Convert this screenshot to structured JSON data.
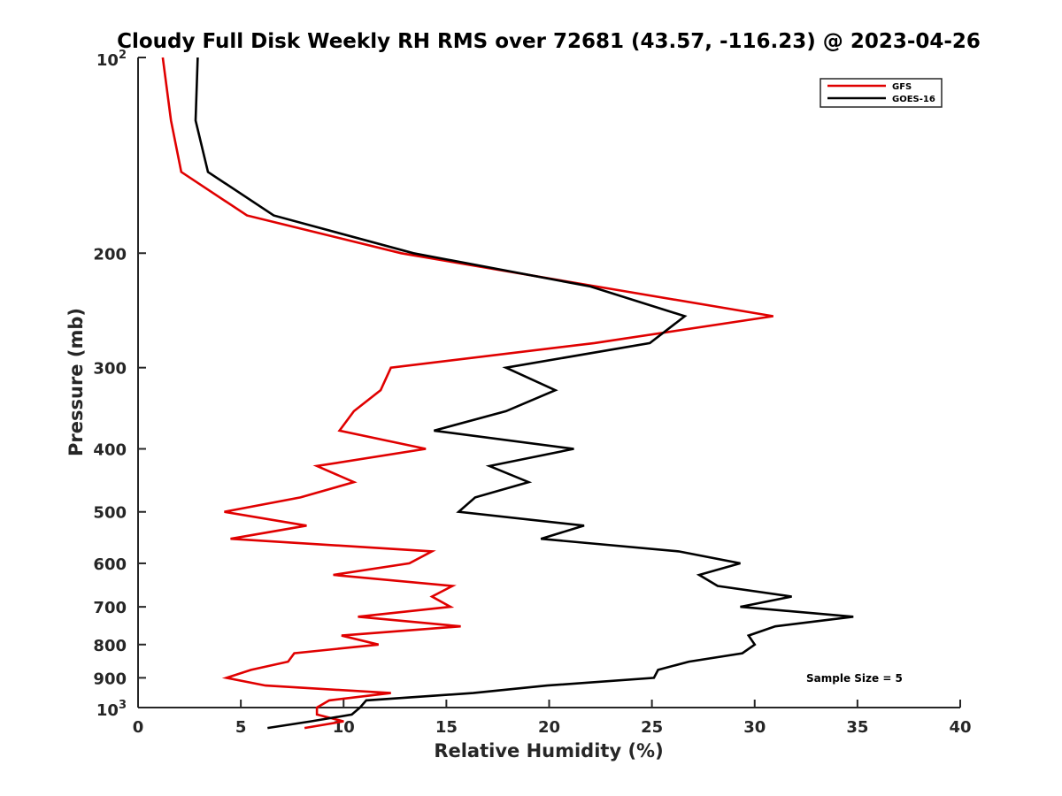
{
  "chart_data": {
    "type": "line",
    "title": "Cloudy Full Disk Weekly RH RMS over 72681 (43.57, -116.23) @ 2023-04-26",
    "xlabel": "Relative Humidity (%)",
    "ylabel": "Pressure (mb)",
    "xlim": [
      0,
      40
    ],
    "ylim": [
      100,
      1000
    ],
    "yscale": "log",
    "y_reversed": true,
    "x_ticks": [
      "0",
      "5",
      "10",
      "15",
      "20",
      "25",
      "30",
      "35",
      "40"
    ],
    "y_ticks": [
      {
        "value": 100,
        "base": "10",
        "exp": "2"
      },
      {
        "value": 200,
        "label": "200"
      },
      {
        "value": 300,
        "label": "300"
      },
      {
        "value": 400,
        "label": "400"
      },
      {
        "value": 500,
        "label": "500"
      },
      {
        "value": 600,
        "label": "600"
      },
      {
        "value": 700,
        "label": "700"
      },
      {
        "value": 800,
        "label": "800"
      },
      {
        "value": 900,
        "label": "900"
      },
      {
        "value": 1000,
        "base": "10",
        "exp": "3"
      }
    ],
    "grid": false,
    "legend_position": "top-right",
    "annotation": "Sample Size = 5",
    "series": [
      {
        "name": "GFS",
        "color": "#e00000",
        "points": [
          [
            1.2,
            100
          ],
          [
            1.6,
            125
          ],
          [
            2.1,
            150
          ],
          [
            5.3,
            175
          ],
          [
            12.8,
            200
          ],
          [
            22.3,
            225
          ],
          [
            30.9,
            250
          ],
          [
            22.2,
            275
          ],
          [
            12.3,
            300
          ],
          [
            11.8,
            325
          ],
          [
            10.5,
            350
          ],
          [
            9.8,
            375
          ],
          [
            14.0,
            400
          ],
          [
            8.7,
            425
          ],
          [
            10.5,
            450
          ],
          [
            7.9,
            475
          ],
          [
            4.2,
            500
          ],
          [
            8.2,
            525
          ],
          [
            4.5,
            550
          ],
          [
            14.3,
            575
          ],
          [
            13.2,
            600
          ],
          [
            9.5,
            625
          ],
          [
            15.3,
            650
          ],
          [
            14.3,
            675
          ],
          [
            15.2,
            700
          ],
          [
            10.7,
            725
          ],
          [
            15.7,
            750
          ],
          [
            9.9,
            775
          ],
          [
            11.7,
            800
          ],
          [
            7.6,
            825
          ],
          [
            7.3,
            850
          ],
          [
            5.5,
            875
          ],
          [
            4.3,
            900
          ],
          [
            6.2,
            925
          ],
          [
            12.3,
            950
          ],
          [
            9.3,
            975
          ],
          [
            8.7,
            1000
          ],
          [
            8.7,
            1025
          ],
          [
            10.0,
            1050
          ],
          [
            8.1,
            1075
          ]
        ]
      },
      {
        "name": "GOES-16",
        "color": "#000000",
        "points": [
          [
            2.9,
            100
          ],
          [
            2.8,
            125
          ],
          [
            3.4,
            150
          ],
          [
            6.6,
            175
          ],
          [
            13.4,
            200
          ],
          [
            22.0,
            225
          ],
          [
            26.6,
            250
          ],
          [
            24.9,
            275
          ],
          [
            17.9,
            300
          ],
          [
            20.3,
            325
          ],
          [
            17.9,
            350
          ],
          [
            14.4,
            375
          ],
          [
            21.2,
            400
          ],
          [
            17.1,
            425
          ],
          [
            19.0,
            450
          ],
          [
            16.4,
            475
          ],
          [
            15.6,
            500
          ],
          [
            21.7,
            525
          ],
          [
            19.6,
            550
          ],
          [
            26.3,
            575
          ],
          [
            29.3,
            600
          ],
          [
            27.3,
            625
          ],
          [
            28.2,
            650
          ],
          [
            31.8,
            675
          ],
          [
            29.3,
            700
          ],
          [
            34.8,
            725
          ],
          [
            31.0,
            750
          ],
          [
            29.7,
            775
          ],
          [
            30.0,
            800
          ],
          [
            29.4,
            825
          ],
          [
            26.8,
            850
          ],
          [
            25.3,
            875
          ],
          [
            25.1,
            900
          ],
          [
            19.9,
            925
          ],
          [
            16.3,
            950
          ],
          [
            11.1,
            975
          ],
          [
            10.8,
            1000
          ],
          [
            10.4,
            1025
          ],
          [
            8.4,
            1050
          ],
          [
            6.3,
            1075
          ]
        ]
      }
    ]
  }
}
